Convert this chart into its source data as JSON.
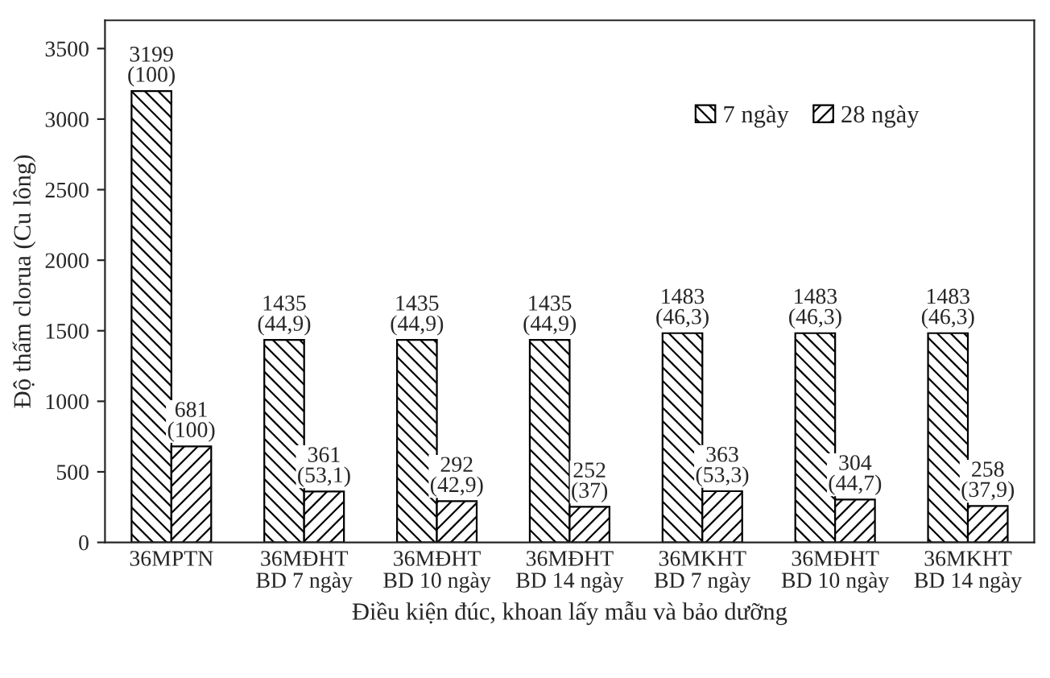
{
  "chart_data": {
    "type": "bar",
    "xlabel": "Điều kiện đúc, khoan lấy mẫu và bảo dưỡng",
    "ylabel": "Độ thấm clorua (Cu lông)",
    "categories": [
      "36MPTN",
      "36MĐHT\nBD 7 ngày",
      "36MĐHT\nBD 10 ngày",
      "36MĐHT\nBD 14 ngày",
      "36MKHT\nBD 7 ngày",
      "36MĐHT\nBD 10 ngày",
      "36MKHT\nBD 14 ngày"
    ],
    "series": [
      {
        "name": "7 ngày",
        "color": "#000000",
        "values": [
          3199,
          1435,
          1435,
          1435,
          1483,
          1483,
          1483
        ],
        "value_labels": [
          "3199\n(100)",
          "1435\n(44,9)",
          "1435\n(44,9)",
          "1435\n(44,9)",
          "1483\n(46,3)",
          "1483\n(46,3)",
          "1483\n(46,3)"
        ]
      },
      {
        "name": "28 ngày",
        "color": "#000000",
        "values": [
          681,
          361,
          292,
          252,
          363,
          304,
          258
        ],
        "value_labels": [
          "681\n(100)",
          "361\n(53,1)",
          "292\n(42,9)",
          "252\n(37)",
          "363\n(53,3)",
          "304\n(44,7)",
          "258\n(37,9)"
        ]
      }
    ],
    "ylim": [
      0,
      3700
    ],
    "yticks": [
      0,
      500,
      1000,
      1500,
      2000,
      2500,
      3000,
      3500
    ],
    "grid": false,
    "legend": "top right"
  }
}
